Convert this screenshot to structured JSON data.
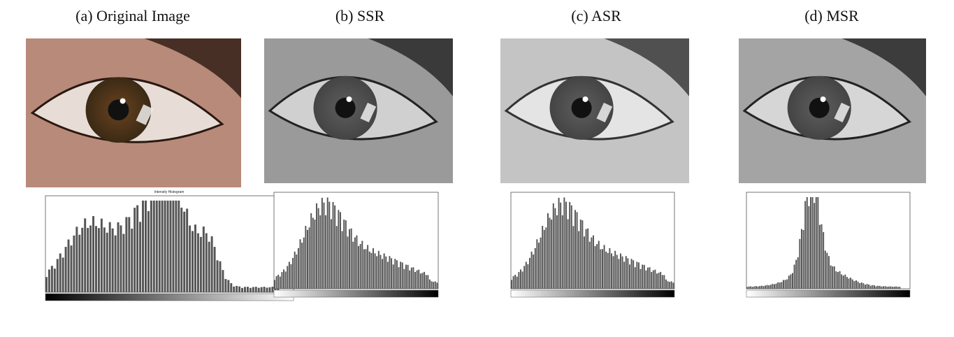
{
  "panels": [
    {
      "title": "(a) Original Image",
      "histogram_title": "Intensity Histogram"
    },
    {
      "title": "(b) SSR"
    },
    {
      "title": "(c) ASR"
    },
    {
      "title": "(d) MSR"
    }
  ]
}
